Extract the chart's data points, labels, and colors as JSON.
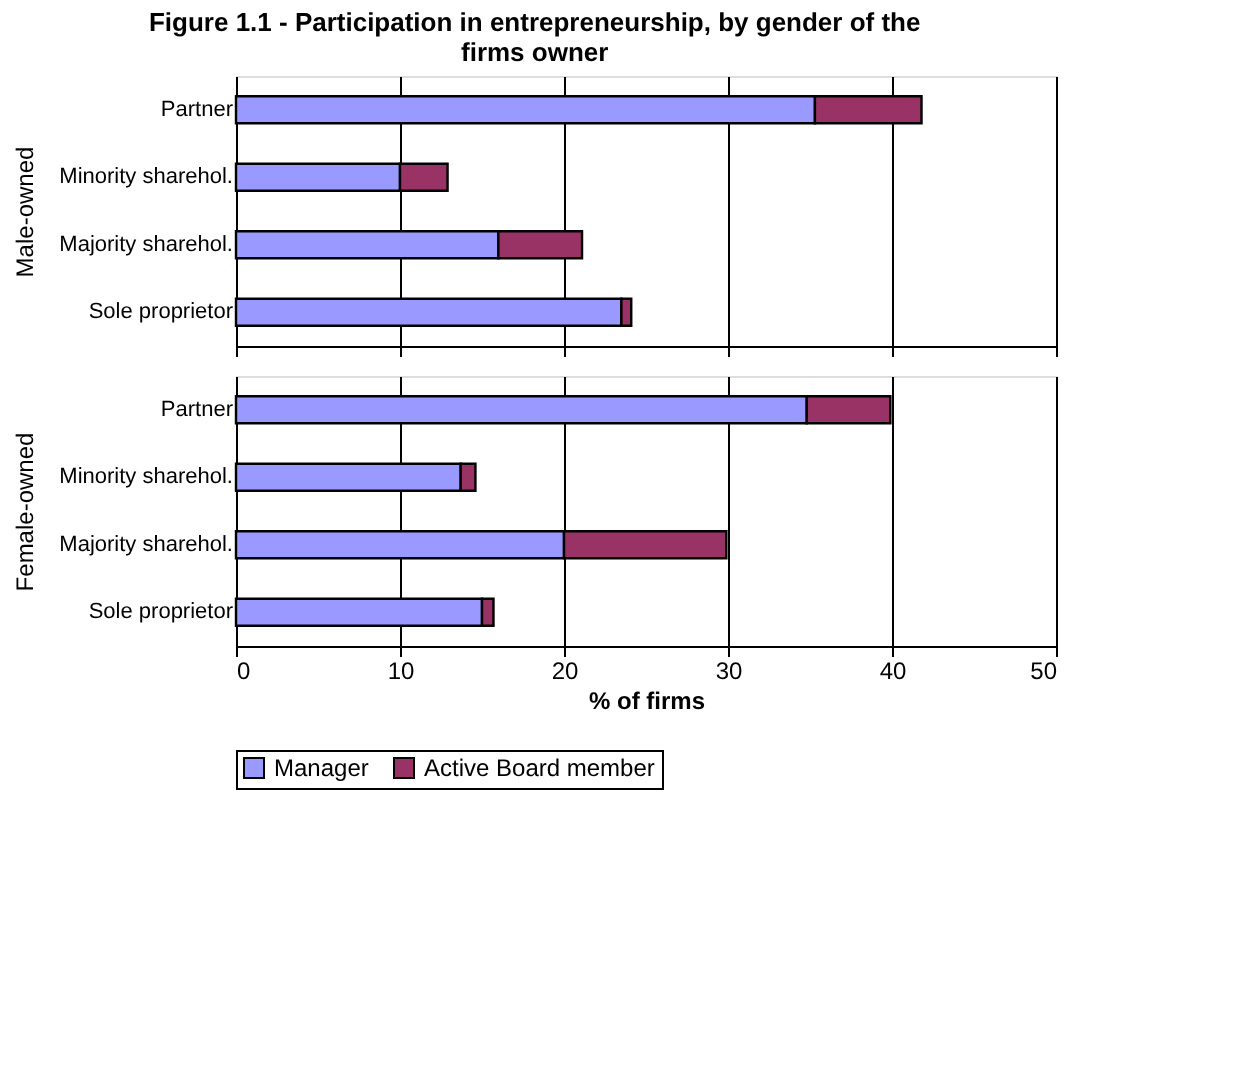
{
  "chart_data": [
    {
      "type": "bar",
      "orientation": "horizontal",
      "stacked": true,
      "title": "Figure 1.1 - Participation in entrepreneurship, by gender of the firms owner",
      "ylabel": "Male-owned",
      "categories": [
        "Partner",
        "Minority sharehol.",
        "Majority sharehol.",
        "Sole proprietor"
      ],
      "series": [
        {
          "name": "Manager",
          "color": "#9999ff",
          "values": [
            35.3,
            10.0,
            16.0,
            23.5
          ]
        },
        {
          "name": "Active Board member",
          "color": "#993366",
          "values": [
            6.5,
            2.9,
            5.1,
            0.6
          ]
        }
      ],
      "xlim": [
        0,
        50
      ],
      "xticks": [
        0,
        10,
        20,
        30,
        40,
        50
      ],
      "grid": "x",
      "tick_labels": "y",
      "legend": "bottom"
    },
    {
      "type": "bar",
      "orientation": "horizontal",
      "stacked": true,
      "ylabel": "Female-owned",
      "xlabel": "% of firms",
      "categories": [
        "Partner",
        "Minority sharehol.",
        "Majority sharehol.",
        "Sole proprietor"
      ],
      "series": [
        {
          "name": "Manager",
          "color": "#9999ff",
          "values": [
            34.8,
            13.7,
            20.0,
            15.0
          ]
        },
        {
          "name": "Active Board member",
          "color": "#993366",
          "values": [
            5.1,
            0.9,
            9.9,
            0.7
          ]
        }
      ],
      "xlim": [
        0,
        50
      ],
      "xticks": [
        0,
        10,
        20,
        30,
        40,
        50
      ],
      "grid": "x",
      "legend": "bottom"
    }
  ]
}
